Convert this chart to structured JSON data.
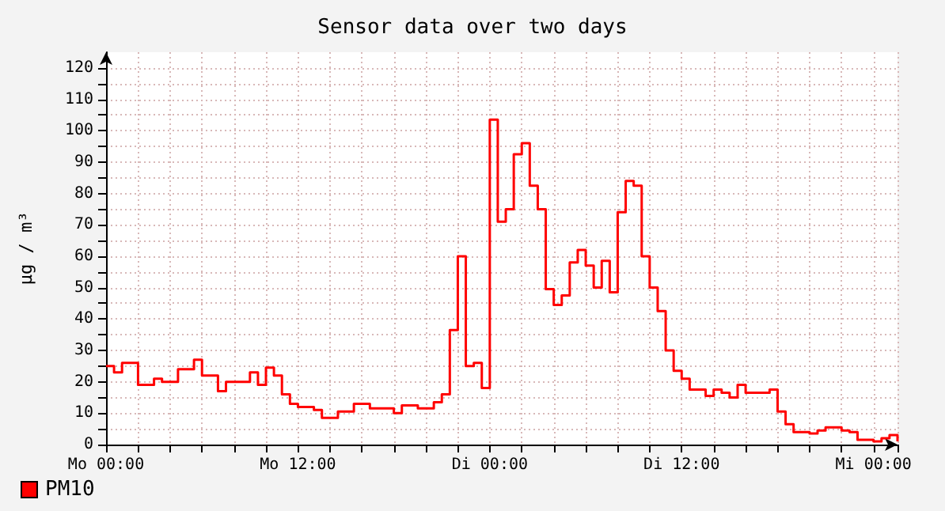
{
  "chart_data": {
    "type": "step",
    "title": "Sensor data over two days",
    "ylabel": "µg / m³",
    "categories": [
      "Mo 00:00",
      null,
      null,
      null,
      null,
      null,
      null,
      null,
      null,
      null,
      null,
      null,
      null,
      null,
      null,
      null,
      null,
      null,
      null,
      null,
      null,
      null,
      null,
      null,
      "Mo 12:00",
      null,
      null,
      null,
      null,
      null,
      null,
      null,
      null,
      null,
      null,
      null,
      null,
      null,
      null,
      null,
      null,
      null,
      null,
      null,
      null,
      null,
      null,
      null,
      "Di 00:00",
      null,
      null,
      null,
      null,
      null,
      null,
      null,
      null,
      null,
      null,
      null,
      null,
      null,
      null,
      null,
      null,
      null,
      null,
      null,
      null,
      null,
      null,
      null,
      "Di 12:00",
      null,
      null,
      null,
      null,
      null,
      null,
      null,
      null,
      null,
      null,
      null,
      null,
      null,
      null,
      null,
      null,
      null,
      null,
      null,
      null,
      null,
      null,
      null,
      "Mi 00:00",
      null,
      null,
      null
    ],
    "series": [
      {
        "name": "PM10",
        "color": "#ff0000",
        "values": [
          25,
          23,
          26,
          26,
          19,
          19,
          21,
          20,
          20,
          24,
          24,
          27,
          22,
          22,
          17,
          20,
          20,
          20,
          23,
          19,
          24.5,
          22,
          16,
          13,
          12,
          12,
          11,
          8.5,
          8.5,
          10.5,
          10.5,
          13,
          13,
          11.5,
          11.5,
          11.5,
          10,
          12.5,
          12.5,
          11.5,
          11.5,
          13.5,
          16,
          36.5,
          60,
          25,
          26,
          18,
          103.5,
          71,
          75,
          92.5,
          96,
          82.5,
          75,
          49.5,
          44.5,
          47.5,
          58,
          62,
          57,
          50,
          58.5,
          48.5,
          74,
          84,
          82.5,
          60,
          50,
          42.5,
          30,
          23.5,
          21,
          17.5,
          17.5,
          15.5,
          17.5,
          16.5,
          15,
          19,
          16.5,
          16.5,
          16.5,
          17.5,
          10.5,
          6.5,
          4,
          4,
          3.5,
          4.5,
          5.5,
          5.5,
          4.5,
          4,
          1.5,
          1.5,
          1,
          2,
          3,
          1
        ]
      }
    ],
    "ylim": [
      0,
      125
    ],
    "yticks": [
      0,
      {
        "value": 5,
        "label": null
      },
      10,
      {
        "value": 15,
        "label": null
      },
      20,
      {
        "value": 25,
        "label": null
      },
      30,
      {
        "value": 35,
        "label": null
      },
      40,
      {
        "value": 45,
        "label": null
      },
      50,
      {
        "value": 55,
        "label": null
      },
      60,
      {
        "value": 65,
        "label": null
      },
      70,
      {
        "value": 75,
        "label": null
      },
      80,
      {
        "value": 85,
        "label": null
      },
      90,
      {
        "value": 95,
        "label": null
      },
      100,
      {
        "value": 105,
        "label": null
      },
      110,
      {
        "value": 115,
        "label": null
      },
      120
    ],
    "grid": true,
    "legend": "bottom left",
    "marker": "none",
    "line_style": "solid"
  }
}
